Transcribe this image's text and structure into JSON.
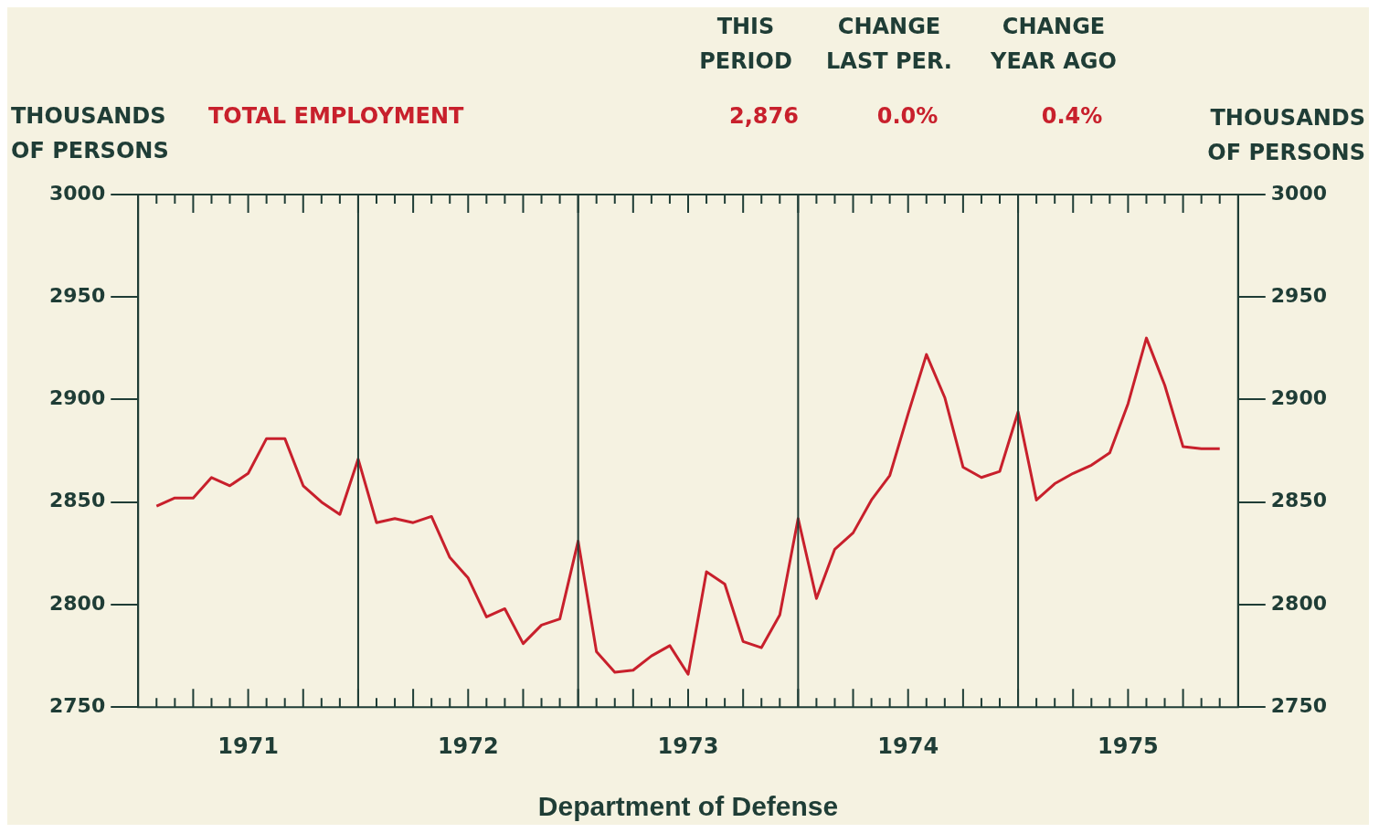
{
  "chart_data": {
    "type": "line",
    "title": "Department of Defense",
    "ylabel": "THOUSANDS OF PERSONS",
    "y2label": "THOUSANDS OF PERSONS",
    "annotations": [
      "THIS PERIOD",
      "CHANGE LAST PER.",
      "CHANGE YEAR AGO",
      "2,876",
      "0.0%",
      "0.4%"
    ],
    "x": [
      "1971-02",
      "1971-03",
      "1971-04",
      "1971-05",
      "1971-06",
      "1971-07",
      "1971-08",
      "1971-09",
      "1971-10",
      "1971-11",
      "1971-12",
      "1972-01",
      "1972-02",
      "1972-03",
      "1972-04",
      "1972-05",
      "1972-06",
      "1972-07",
      "1972-08",
      "1972-09",
      "1972-10",
      "1972-11",
      "1972-12",
      "1973-01",
      "1973-02",
      "1973-03",
      "1973-04",
      "1973-05",
      "1973-06",
      "1973-07",
      "1973-08",
      "1973-09",
      "1973-10",
      "1973-11",
      "1973-12",
      "1974-01",
      "1974-02",
      "1974-03",
      "1974-04",
      "1974-05",
      "1974-06",
      "1974-07",
      "1974-08",
      "1974-09",
      "1974-10",
      "1974-11",
      "1974-12",
      "1975-01",
      "1975-02",
      "1975-03",
      "1975-04",
      "1975-05",
      "1975-06",
      "1975-07",
      "1975-08",
      "1975-09",
      "1975-10",
      "1975-11",
      "1975-12"
    ],
    "series": [
      {
        "name": "TOTAL EMPLOYMENT",
        "color": "#c8202c",
        "values": [
          2848,
          2852,
          2852,
          2862,
          2858,
          2864,
          2881,
          2881,
          2858,
          2850,
          2844,
          2871,
          2840,
          2842,
          2840,
          2843,
          2823,
          2813,
          2794,
          2798,
          2781,
          2790,
          2793,
          2831,
          2777,
          2767,
          2768,
          2775,
          2780,
          2766,
          2816,
          2810,
          2782,
          2779,
          2795,
          2842,
          2803,
          2827,
          2835,
          2851,
          2863,
          2893,
          2922,
          2901,
          2867,
          2862,
          2865,
          2894,
          2851,
          2859,
          2864,
          2868,
          2874,
          2898,
          2930,
          2907,
          2877,
          2876,
          2876
        ]
      }
    ],
    "xlim": [
      "1971-01",
      "1976-01"
    ],
    "xticks": [
      {
        "value": "1971-07",
        "label": "1971"
      },
      {
        "value": "1972-07",
        "label": "1972"
      },
      {
        "value": "1973-07",
        "label": "1973"
      },
      {
        "value": "1974-07",
        "label": "1974"
      },
      {
        "value": "1975-07",
        "label": "1975"
      }
    ],
    "ylim": [
      2750,
      3000
    ],
    "yticks": [
      2750,
      2800,
      2850,
      2900,
      2950,
      3000
    ],
    "y2lim": [
      2750,
      3000
    ],
    "y2ticks": [
      2750,
      2800,
      2850,
      2900,
      2950,
      3000
    ],
    "ref_lines": [
      {
        "axis": "x",
        "value": "1972-01",
        "color": "#1f3d36"
      },
      {
        "axis": "x",
        "value": "1973-01",
        "color": "#1f3d36"
      },
      {
        "axis": "x",
        "value": "1974-01",
        "color": "#1f3d36"
      },
      {
        "axis": "x",
        "value": "1975-01",
        "color": "#1f3d36"
      }
    ],
    "grid": false,
    "legend": false,
    "marker": "none",
    "line_style": "solid"
  }
}
